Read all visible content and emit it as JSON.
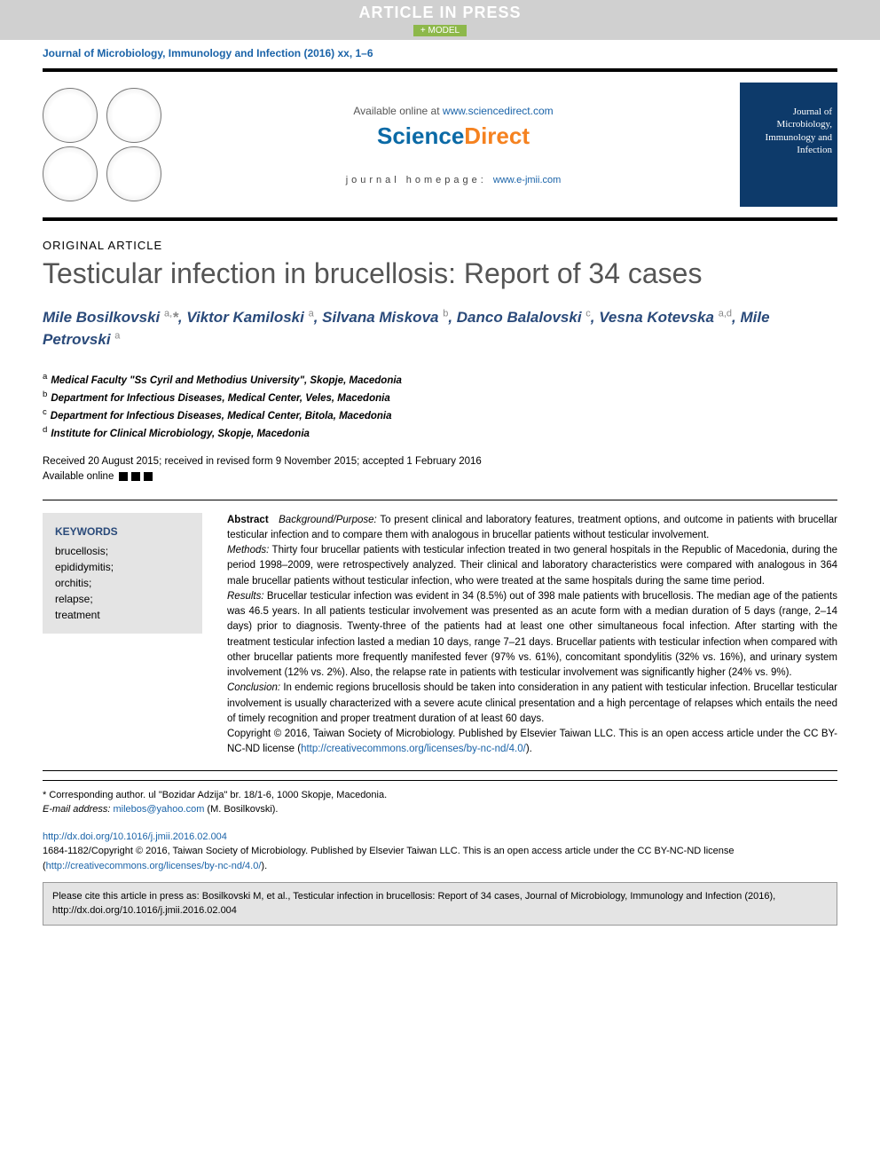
{
  "banner": {
    "aip": "ARTICLE IN PRESS",
    "model": "+ MODEL"
  },
  "journal_ref": "Journal of Microbiology, Immunology and Infection (2016) xx, 1–6",
  "header": {
    "available_text": "Available online at ",
    "available_url": "www.sciencedirect.com",
    "sd_sci": "Science",
    "sd_dir": "Direct",
    "homepage_label": "journal homepage: ",
    "homepage_url": "www.e-jmii.com",
    "cover_subtitle": "Journal of",
    "cover_title": "Microbiology, Immunology and Infection"
  },
  "article_type": "ORIGINAL ARTICLE",
  "title": "Testicular infection in brucellosis: Report of 34 cases",
  "authors_html": "Mile Bosilkovski <sup>a,</sup><span class='star'>*</span>, Viktor Kamiloski <sup>a</sup>, Silvana Miskova <sup>b</sup>, Danco Balalovski <sup>c</sup>, Vesna Kotevska <sup>a,d</sup>, Mile Petrovski <sup>a</sup>",
  "affiliations": [
    {
      "sup": "a",
      "text": "Medical Faculty \"Ss Cyril and Methodius University\", Skopje, Macedonia"
    },
    {
      "sup": "b",
      "text": "Department for Infectious Diseases, Medical Center, Veles, Macedonia"
    },
    {
      "sup": "c",
      "text": "Department for Infectious Diseases, Medical Center, Bitola, Macedonia"
    },
    {
      "sup": "d",
      "text": "Institute for Clinical Microbiology, Skopje, Macedonia"
    }
  ],
  "dates": {
    "line1": "Received 20 August 2015; received in revised form 9 November 2015; accepted 1 February 2016",
    "line2": "Available online"
  },
  "keywords": {
    "heading": "KEYWORDS",
    "items": [
      "brucellosis;",
      "epididymitis;",
      "orchitis;",
      "relapse;",
      "treatment"
    ]
  },
  "abstract": {
    "abs_label": "Abstract",
    "sections": [
      {
        "label": "Background/Purpose:",
        "text": " To present clinical and laboratory features, treatment options, and outcome in patients with brucellar testicular infection and to compare them with analogous in brucellar patients without testicular involvement."
      },
      {
        "label": "Methods:",
        "text": " Thirty four brucellar patients with testicular infection treated in two general hospitals in the Republic of Macedonia, during the period 1998–2009, were retrospectively analyzed. Their clinical and laboratory characteristics were compared with analogous in 364 male brucellar patients without testicular infection, who were treated at the same hospitals during the same time period."
      },
      {
        "label": "Results:",
        "text": " Brucellar testicular infection was evident in 34 (8.5%) out of 398 male patients with brucellosis. The median age of the patients was 46.5 years. In all patients testicular involvement was presented as an acute form with a median duration of 5 days (range, 2–14 days) prior to diagnosis. Twenty-three of the patients had at least one other simultaneous focal infection. After starting with the treatment testicular infection lasted a median 10 days, range 7–21 days. Brucellar patients with testicular infection when compared with other brucellar patients more frequently manifested fever (97% vs. 61%), concomitant spondylitis (32% vs. 16%), and urinary system involvement (12% vs. 2%). Also, the relapse rate in patients with testicular involvement was significantly higher (24% vs. 9%)."
      },
      {
        "label": "Conclusion:",
        "text": " In endemic regions brucellosis should be taken into consideration in any patient with testicular infection. Brucellar testicular involvement is usually characterized with a severe acute clinical presentation and a high percentage of relapses which entails the need of timely recognition and proper treatment duration of at least 60 days."
      }
    ],
    "copyright": "Copyright © 2016, Taiwan Society of Microbiology. Published by Elsevier Taiwan LLC. This is an open access article under the CC BY-NC-ND license (",
    "license_url": "http://creativecommons.org/licenses/by-nc-nd/4.0/",
    "copyright_close": ")."
  },
  "footer": {
    "corresponding": "* Corresponding author. ul \"Bozidar Adzija\" br. 18/1-6, 1000 Skopje, Macedonia.",
    "email_label": "E-mail address: ",
    "email": "milebos@yahoo.com",
    "email_suffix": " (M. Bosilkovski)."
  },
  "doi": {
    "url": "http://dx.doi.org/10.1016/j.jmii.2016.02.004",
    "issn_line": "1684-1182/Copyright © 2016, Taiwan Society of Microbiology. Published by Elsevier Taiwan LLC. This is an open access article under the CC BY-NC-ND license (",
    "license_url": "http://creativecommons.org/licenses/by-nc-nd/4.0/",
    "close": ")."
  },
  "cite_box": "Please cite this article in press as: Bosilkovski M, et al., Testicular infection in brucellosis: Report of 34 cases, Journal of Microbiology, Immunology and Infection (2016), http://dx.doi.org/10.1016/j.jmii.2016.02.004",
  "colors": {
    "link": "#1a63a8",
    "author": "#2a4a7a",
    "banner_bg": "#d0d0d0",
    "model_bg": "#8db84a",
    "cover_bg": "#0d3a6a",
    "box_bg": "#e4e4e4",
    "sd_orange": "#f58220"
  }
}
